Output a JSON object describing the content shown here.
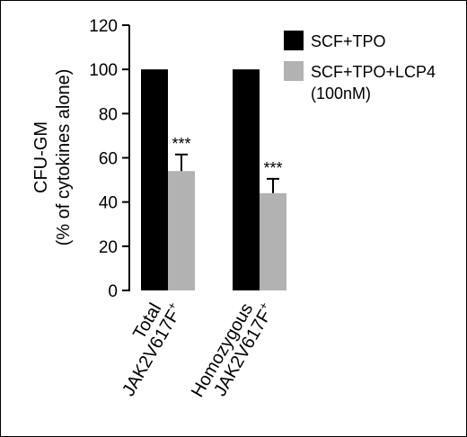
{
  "chart_data": {
    "type": "bar",
    "ylabel_line1": "CFU-GM",
    "ylabel_line2": "(% of cytokines alone)",
    "ylim": [
      0,
      120
    ],
    "yticks": [
      0,
      20,
      40,
      60,
      80,
      100,
      120
    ],
    "grid": false,
    "legend_position": "top-right",
    "categories": [
      {
        "line1": "Total",
        "line2": "JAK2V617F",
        "sup": "+"
      },
      {
        "line1": "Homozygous",
        "line2": "JAK2V617F",
        "sup": "+"
      }
    ],
    "series": [
      {
        "name": "SCF+TPO",
        "name_line2": "",
        "color": "#000000",
        "values": [
          100,
          100
        ],
        "errors": [
          0,
          0
        ],
        "annotations": [
          "",
          ""
        ]
      },
      {
        "name": "SCF+TPO+LCP4",
        "name_line2": "(100nM)",
        "color": "#b2b2b2",
        "values": [
          54,
          44
        ],
        "errors": [
          7.5,
          6.5
        ],
        "annotations": [
          "***",
          "***"
        ]
      }
    ]
  }
}
